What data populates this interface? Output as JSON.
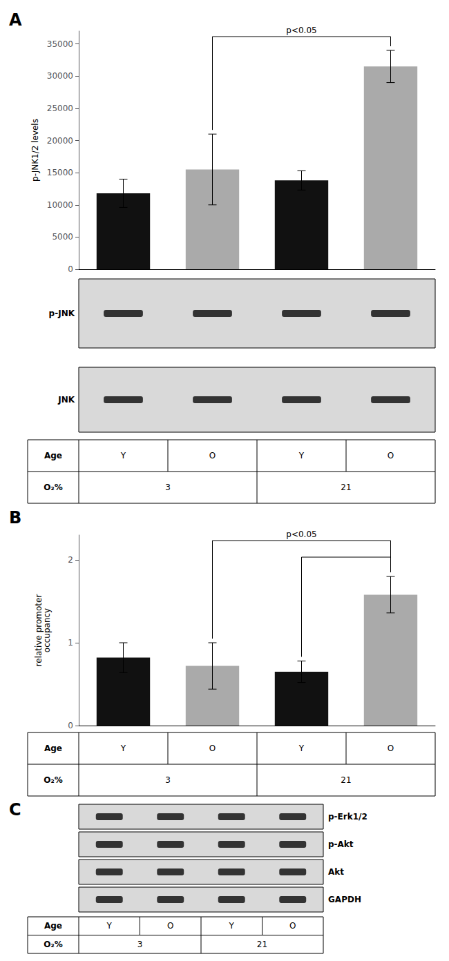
{
  "chart_data": [
    {
      "type": "bar",
      "title": "A",
      "categories": [
        null,
        null,
        null,
        null
      ],
      "values": [
        11800,
        15500,
        13800,
        31500
      ],
      "errors": [
        2200,
        5500,
        1500,
        2500
      ],
      "colors": [
        "#111111",
        "#aaaaaa",
        "#111111",
        "#aaaaaa"
      ],
      "ylabel": "p-JNK1/2 levels",
      "ylim": [
        0,
        37000
      ],
      "yticks": [
        0,
        5000,
        10000,
        15000,
        20000,
        25000,
        30000,
        35000
      ],
      "grid": false,
      "brackets": [
        {
          "from": 1,
          "to": 3,
          "text": "p<0.05"
        }
      ],
      "blot_labels": [
        "p-JNK",
        "JNK"
      ],
      "table": {
        "row_labels": [
          "Age",
          "O₂%"
        ],
        "age": [
          "Y",
          "O",
          "Y",
          "O"
        ],
        "o2": [
          "3",
          "21"
        ]
      }
    },
    {
      "type": "bar",
      "title": "B",
      "categories": [
        null,
        null,
        null,
        null
      ],
      "values": [
        0.82,
        0.72,
        0.65,
        1.58
      ],
      "errors": [
        0.18,
        0.28,
        0.13,
        0.22
      ],
      "colors": [
        "#111111",
        "#aaaaaa",
        "#111111",
        "#aaaaaa"
      ],
      "ylabel": "relative promoter\noccupancy",
      "ylim": [
        0,
        2.3
      ],
      "yticks": [
        0,
        1,
        2
      ],
      "grid": false,
      "brackets": [
        {
          "from": 1,
          "to": 3,
          "text": "p<0.05"
        },
        {
          "from": 2,
          "to": 3
        }
      ],
      "table": {
        "row_labels": [
          "Age",
          "O₂%"
        ],
        "age": [
          "Y",
          "O",
          "Y",
          "O"
        ],
        "o2": [
          "3",
          "21"
        ]
      }
    },
    {
      "type": "blot",
      "title": "C",
      "blot_labels": [
        "p-Erk1/2",
        "p-Akt",
        "Akt",
        "GAPDH"
      ],
      "table": {
        "row_labels": [
          "Age",
          "O₂%"
        ],
        "age": [
          "Y",
          "O",
          "Y",
          "O"
        ],
        "o2": [
          "3",
          "21"
        ]
      }
    }
  ]
}
